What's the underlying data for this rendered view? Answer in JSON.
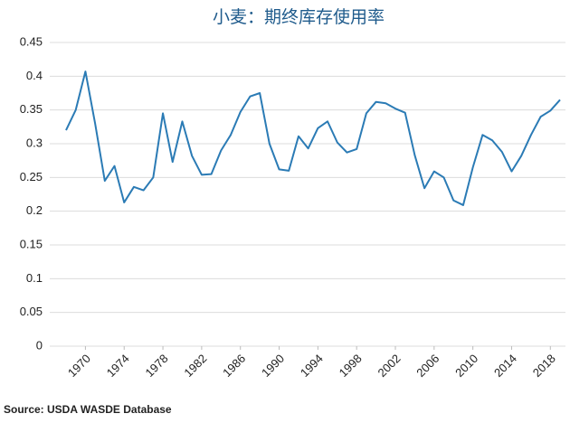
{
  "chart_data": {
    "type": "line",
    "title": "小麦：期终库存使用率",
    "source": "Source: USDA WASDE Database",
    "x": [
      1968,
      1969,
      1970,
      1971,
      1972,
      1973,
      1974,
      1975,
      1976,
      1977,
      1978,
      1979,
      1980,
      1981,
      1982,
      1983,
      1984,
      1985,
      1986,
      1987,
      1988,
      1989,
      1990,
      1991,
      1992,
      1993,
      1994,
      1995,
      1996,
      1997,
      1998,
      1999,
      2000,
      2001,
      2002,
      2003,
      2004,
      2005,
      2006,
      2007,
      2008,
      2009,
      2010,
      2011,
      2012,
      2013,
      2014,
      2015,
      2016,
      2017,
      2018,
      2019
    ],
    "series": [
      {
        "name": "期终库存使用率",
        "color": "#2b7bb5",
        "values": [
          0.32,
          0.35,
          0.407,
          0.33,
          0.245,
          0.267,
          0.213,
          0.236,
          0.231,
          0.25,
          0.345,
          0.273,
          0.333,
          0.282,
          0.254,
          0.255,
          0.29,
          0.313,
          0.347,
          0.37,
          0.375,
          0.3,
          0.262,
          0.26,
          0.311,
          0.293,
          0.323,
          0.333,
          0.302,
          0.287,
          0.292,
          0.345,
          0.362,
          0.36,
          0.352,
          0.346,
          0.283,
          0.234,
          0.259,
          0.25,
          0.216,
          0.209,
          0.265,
          0.313,
          0.305,
          0.288,
          0.259,
          0.282,
          0.313,
          0.34,
          0.349,
          0.365
        ]
      }
    ],
    "xlim": [
      1968,
      2019
    ],
    "xticks": [
      1970,
      1974,
      1978,
      1982,
      1986,
      1990,
      1994,
      1998,
      2002,
      2006,
      2010,
      2014,
      2018
    ],
    "ylim": [
      0,
      0.45
    ],
    "yticks": [
      0,
      0.05,
      0.1,
      0.15,
      0.2,
      0.25,
      0.3,
      0.35,
      0.4,
      0.45
    ],
    "grid": true
  }
}
